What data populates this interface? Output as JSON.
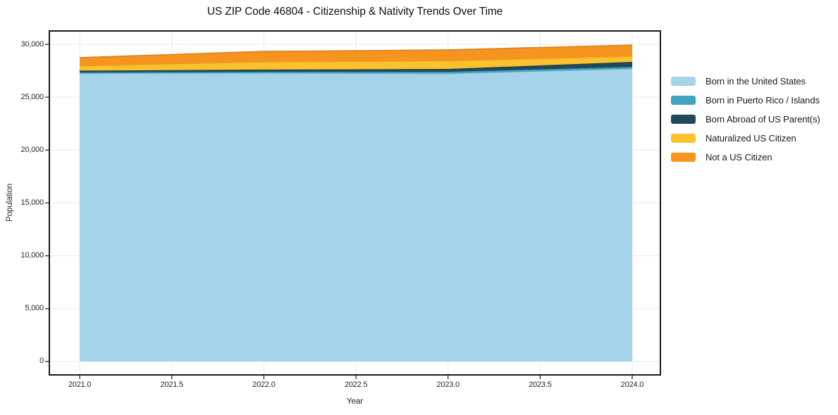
{
  "figure": {
    "background": "#ffffff",
    "spine_color": "#1a1a1a",
    "grid_color": "#e9e9e9",
    "tick_color": "#1a1a1a"
  },
  "chart_data": {
    "type": "area",
    "stacked": true,
    "title": "US ZIP Code 46804 - Citizenship & Nativity Trends Over Time",
    "xlabel": "Year",
    "ylabel": "Population",
    "grid": true,
    "legend_position": "right-outside",
    "x": [
      2021,
      2022,
      2023,
      2024
    ],
    "series": [
      {
        "name": "Born in the United States",
        "color": "#a5d3e9",
        "values": [
          27240,
          27270,
          27230,
          27690
        ]
      },
      {
        "name": "Born in Puerto Rico / Islands",
        "color": "#40a3c2",
        "values": [
          110,
          140,
          180,
          180
        ]
      },
      {
        "name": "Born Abroad of US Parent(s)",
        "color": "#1f485c",
        "values": [
          160,
          200,
          260,
          470
        ]
      },
      {
        "name": "Naturalized US Citizen",
        "color": "#fcc22d",
        "values": [
          450,
          730,
          760,
          530
        ]
      },
      {
        "name": "Not a US Citizen",
        "color": "#f79420",
        "values": [
          780,
          990,
          1040,
          1060
        ]
      }
    ],
    "totals": [
      28740,
      29330,
      29470,
      29930
    ],
    "xlim": [
      2020.835,
      2024.153
    ],
    "ylim": [
      -1264,
      31264
    ],
    "x_ticks": [
      {
        "v": 2021.0,
        "label": "2021.0"
      },
      {
        "v": 2021.5,
        "label": "2021.5"
      },
      {
        "v": 2022.0,
        "label": "2022.0"
      },
      {
        "v": 2022.5,
        "label": "2022.5"
      },
      {
        "v": 2023.0,
        "label": "2023.0"
      },
      {
        "v": 2023.5,
        "label": "2023.5"
      },
      {
        "v": 2024.0,
        "label": "2024.0"
      }
    ],
    "y_ticks": [
      {
        "v": 0,
        "label": "0"
      },
      {
        "v": 5000,
        "label": "5,000"
      },
      {
        "v": 10000,
        "label": "10,000"
      },
      {
        "v": 15000,
        "label": "15,000"
      },
      {
        "v": 20000,
        "label": "20,000"
      },
      {
        "v": 25000,
        "label": "25,000"
      },
      {
        "v": 30000,
        "label": "30,000"
      }
    ]
  }
}
